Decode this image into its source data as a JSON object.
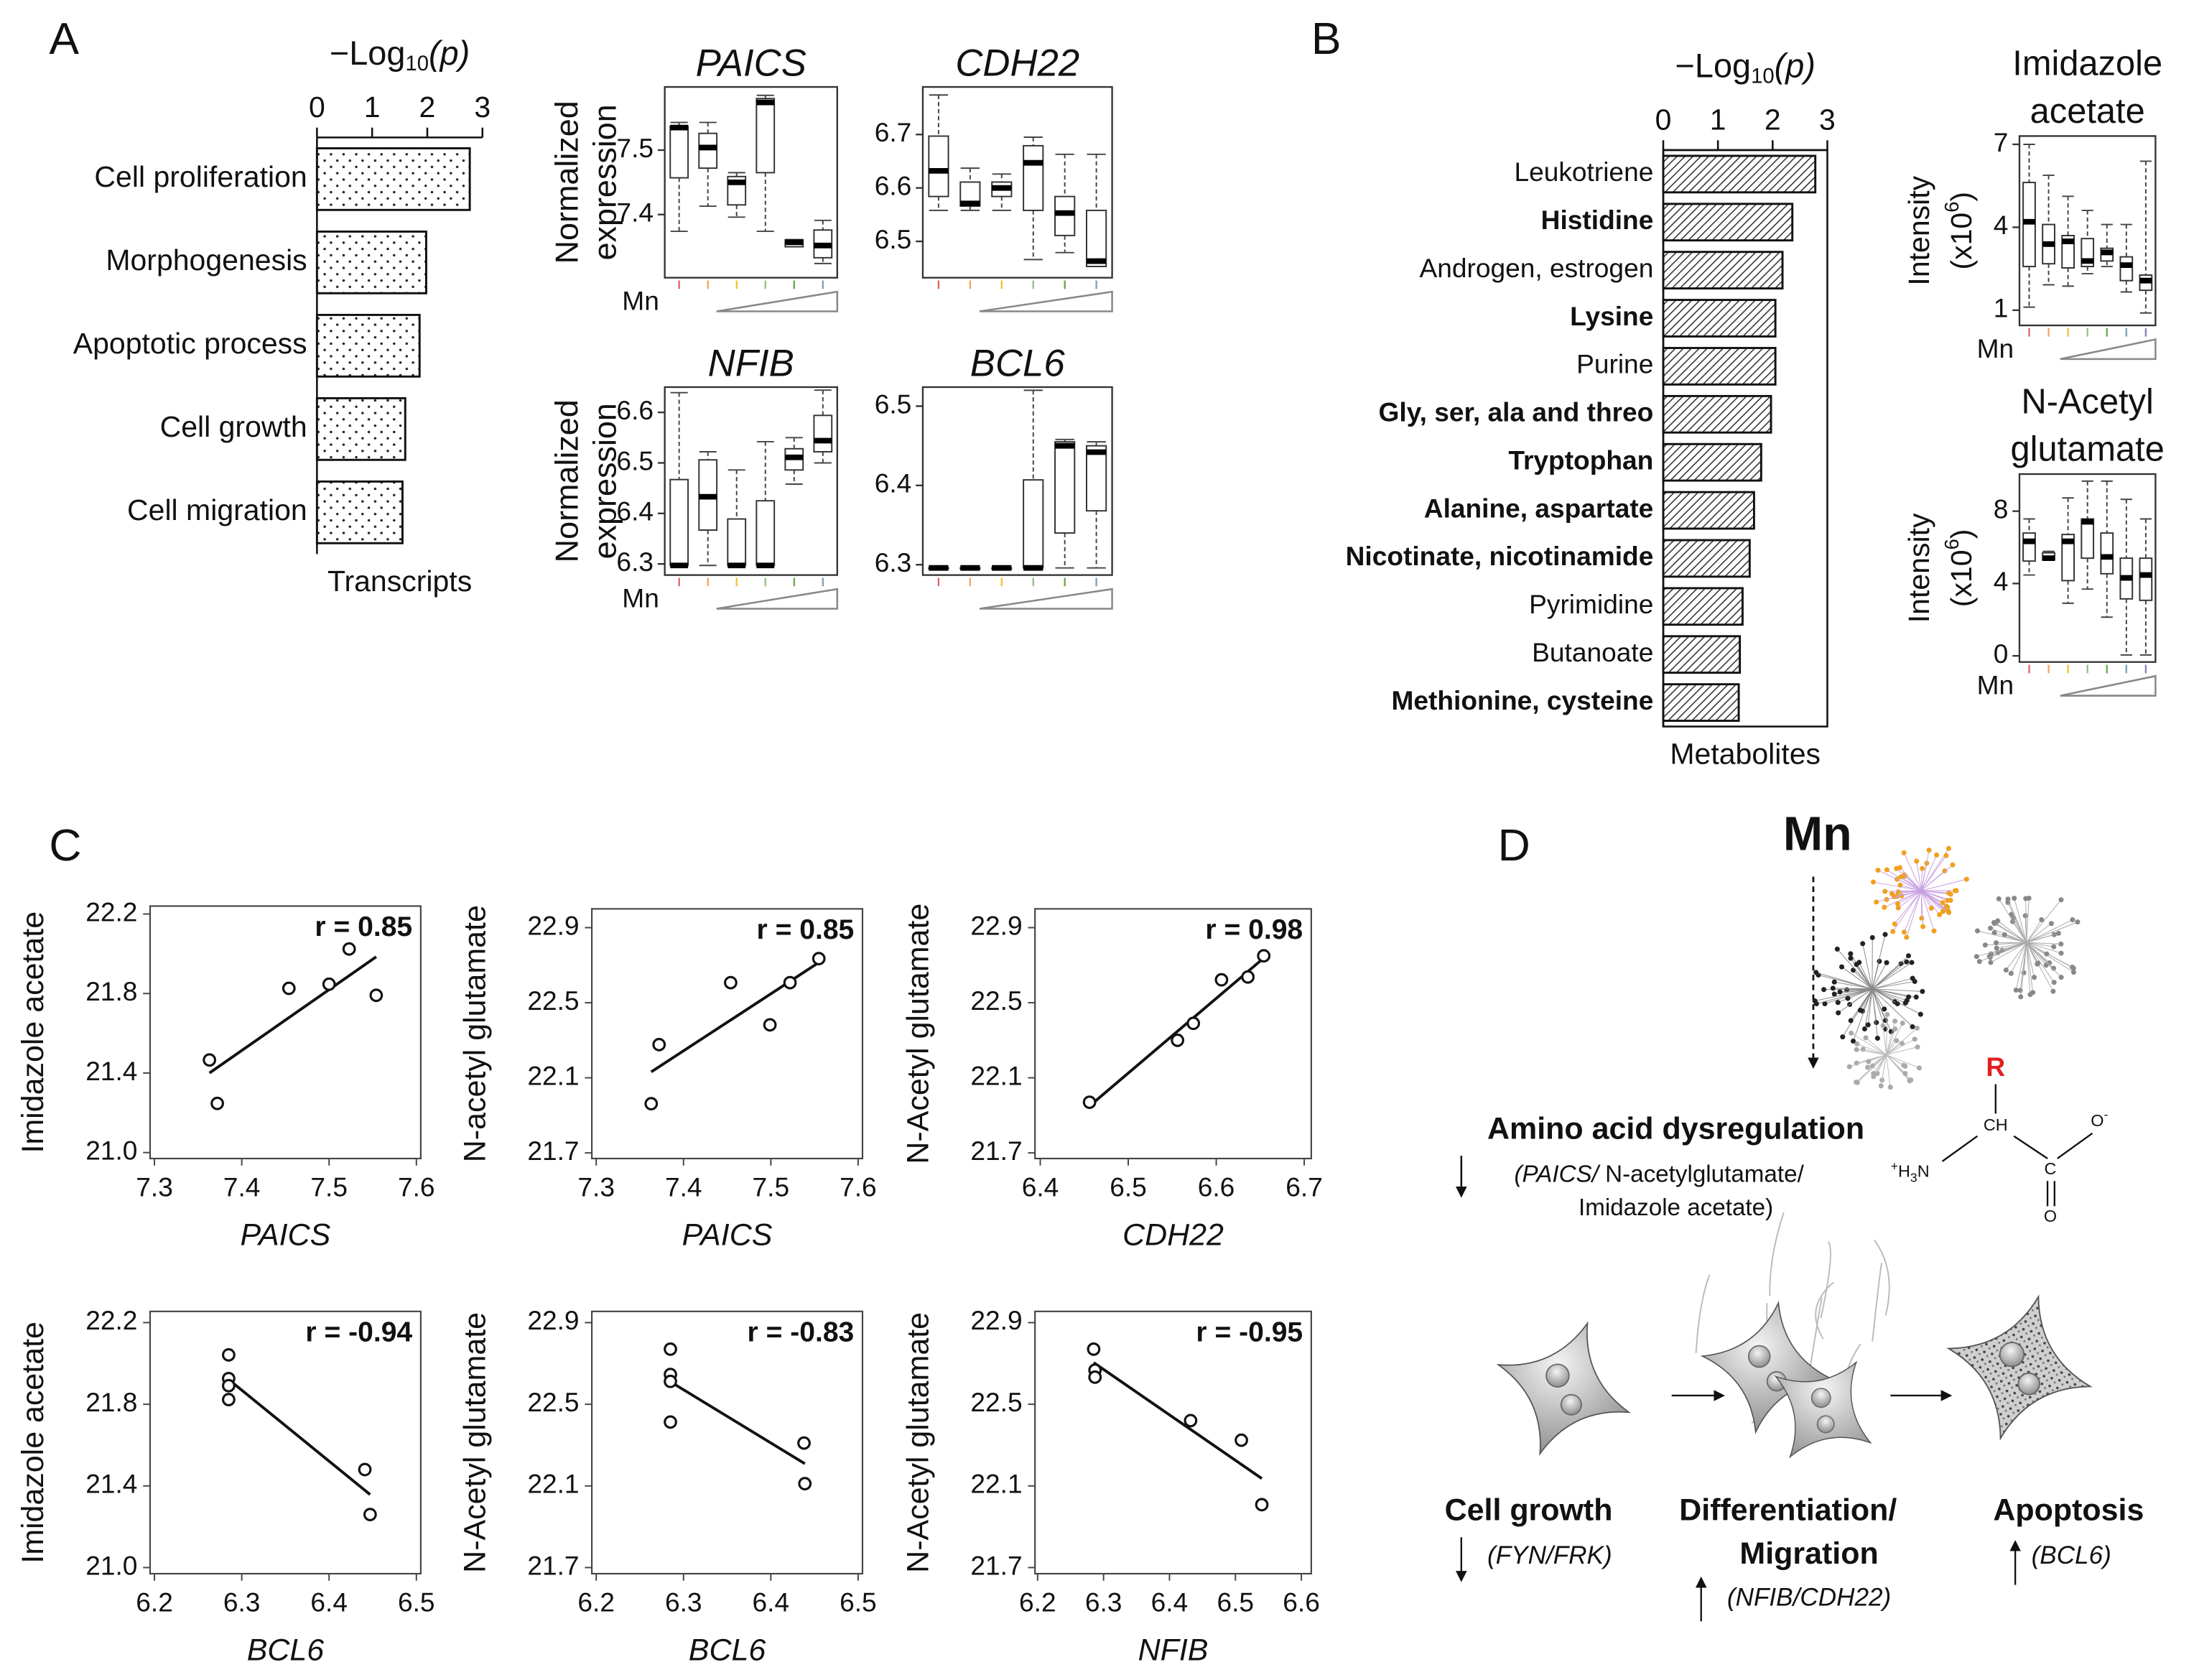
{
  "panel_labels": [
    "A",
    "B",
    "C",
    "D"
  ],
  "chart_data": [
    {
      "type": "barh",
      "title": [
        "−Log",
        "10",
        "(p)"
      ],
      "categories": [
        "Cell proliferation",
        "Morphogenesis",
        "Apoptotic process",
        "Cell growth",
        "Cell migration"
      ],
      "values": [
        2.77,
        1.98,
        1.86,
        1.6,
        1.55
      ],
      "xlim": [
        0,
        3
      ],
      "xticks": [
        0,
        1,
        2,
        3
      ],
      "xlabel": "Transcripts",
      "pattern": "dots",
      "frame": false
    },
    {
      "type": "box",
      "title": "PAICS",
      "italic_title": true,
      "ylabel": [
        "Normalized",
        "expression"
      ],
      "xlabel": "Mn",
      "ylim": [
        7.302,
        7.598
      ],
      "yticks": [
        7.4,
        7.5
      ],
      "min": [
        7.374,
        7.413,
        7.396,
        7.374,
        7.35,
        7.324
      ],
      "q1": [
        7.457,
        7.472,
        7.415,
        7.465,
        7.35,
        7.333
      ],
      "median": [
        7.535,
        7.504,
        7.45,
        7.574,
        7.357,
        7.352
      ],
      "q3": [
        7.537,
        7.526,
        7.459,
        7.58,
        7.361,
        7.376
      ],
      "max": [
        7.543,
        7.543,
        7.465,
        7.585,
        7.361,
        7.391
      ]
    },
    {
      "type": "box",
      "title": "CDH22",
      "italic_title": true,
      "ylim": [
        6.432,
        6.789
      ],
      "yticks": [
        6.5,
        6.6,
        6.7
      ],
      "min": [
        6.558,
        6.558,
        6.558,
        6.466,
        6.479,
        6.453
      ],
      "q1": [
        6.584,
        6.566,
        6.584,
        6.558,
        6.511,
        6.453
      ],
      "median": [
        6.632,
        6.571,
        6.6,
        6.647,
        6.553,
        6.463
      ],
      "q3": [
        6.697,
        6.611,
        6.611,
        6.679,
        6.584,
        6.558
      ],
      "max": [
        6.774,
        6.637,
        6.626,
        6.695,
        6.663,
        6.663
      ]
    },
    {
      "type": "box",
      "title": "NFIB",
      "italic_title": true,
      "ylabel": [
        "Normalized",
        "expression"
      ],
      "xlabel": "Mn",
      "ylim": [
        6.278,
        6.65
      ],
      "yticks": [
        6.3,
        6.4,
        6.5,
        6.6
      ],
      "min": [
        6.297,
        6.297,
        6.297,
        6.297,
        6.458,
        6.5
      ],
      "q1": [
        6.297,
        6.367,
        6.297,
        6.297,
        6.486,
        6.522
      ],
      "median": [
        6.297,
        6.433,
        6.297,
        6.297,
        6.511,
        6.544
      ],
      "q3": [
        6.467,
        6.506,
        6.389,
        6.425,
        6.528,
        6.594
      ],
      "max": [
        6.639,
        6.522,
        6.486,
        6.542,
        6.55,
        6.644
      ]
    },
    {
      "type": "box",
      "title": "BCL6",
      "italic_title": true,
      "ylim": [
        6.287,
        6.524
      ],
      "yticks": [
        6.3,
        6.4,
        6.5
      ],
      "min": [
        6.296,
        6.296,
        6.296,
        6.296,
        6.296,
        6.296
      ],
      "q1": [
        6.296,
        6.296,
        6.296,
        6.296,
        6.34,
        6.368
      ],
      "median": [
        6.296,
        6.296,
        6.296,
        6.296,
        6.45,
        6.442
      ],
      "q3": [
        6.296,
        6.296,
        6.296,
        6.407,
        6.455,
        6.45
      ],
      "max": [
        6.296,
        6.296,
        6.296,
        6.52,
        6.458,
        6.455
      ]
    },
    {
      "type": "barh",
      "title": [
        "−Log",
        "10",
        "(p)"
      ],
      "categories": [
        "Leukotriene",
        "Histidine",
        "Androgen, estrogen",
        "Lysine",
        "Purine",
        "Gly, ser, ala and threo",
        "Tryptophan",
        "Alanine, aspartate",
        "Nicotinate, nicotinamide",
        "Pyrimidine",
        "Butanoate",
        "Methionine, cysteine"
      ],
      "bold": [
        false,
        true,
        false,
        true,
        false,
        true,
        true,
        true,
        true,
        false,
        false,
        true
      ],
      "values": [
        2.78,
        2.36,
        2.18,
        2.05,
        2.05,
        1.97,
        1.79,
        1.66,
        1.58,
        1.45,
        1.4,
        1.38
      ],
      "xlim": [
        0,
        3
      ],
      "xticks": [
        0,
        1,
        2,
        3
      ],
      "xlabel": "Metabolites",
      "pattern": "hatch",
      "frame": true
    },
    {
      "type": "box",
      "title": [
        "Imidazole",
        "acetate"
      ],
      "italic_title": false,
      "ylabel": [
        "Intensity"
      ],
      "ylabel_unit": [
        "(x10",
        "6",
        ")"
      ],
      "xlabel": "Mn",
      "ylim": [
        0.45,
        7.3
      ],
      "yticks": [
        1,
        4,
        7
      ],
      "min": [
        1.11,
        1.92,
        1.87,
        2.32,
        2.58,
        1.66,
        0.9
      ],
      "q1": [
        2.58,
        2.68,
        2.53,
        2.58,
        2.78,
        2.07,
        1.72
      ],
      "median": [
        4.2,
        3.39,
        3.49,
        2.78,
        3.09,
        2.63,
        2.07
      ],
      "q3": [
        5.62,
        4.1,
        3.7,
        3.59,
        3.24,
        2.93,
        2.27
      ],
      "max": [
        7,
        5.88,
        5.12,
        4.61,
        4.1,
        4.1,
        6.39
      ]
    },
    {
      "type": "box",
      "title": [
        "N-Acetyl",
        "glutamate"
      ],
      "italic_title": false,
      "ylabel": [
        "Intensity"
      ],
      "ylabel_unit": [
        "(x10",
        "6",
        ")"
      ],
      "xlabel": "Mn",
      "ylim": [
        -0.34,
        10.05
      ],
      "yticks": [
        0,
        4,
        8
      ],
      "min": [
        4.47,
        5.3,
        2.91,
        3.69,
        2.14,
        0.05,
        0.05
      ],
      "q1": [
        5.24,
        5.3,
        4.16,
        5.4,
        4.54,
        3.15,
        3.07
      ],
      "median": [
        6.33,
        5.4,
        6.33,
        7.41,
        5.47,
        4.31,
        4.47
      ],
      "q3": [
        6.79,
        5.7,
        6.71,
        7.57,
        6.79,
        5.4,
        5.4
      ],
      "max": [
        7.57,
        5.78,
        8.73,
        9.66,
        9.66,
        8.65,
        7.57
      ]
    },
    {
      "type": "scatter",
      "xlabel": "PAICS",
      "italic_xlabel": true,
      "ylabel": "Imidazole acetate",
      "annotation": "r = 0.85",
      "x": [
        7.363,
        7.372,
        7.454,
        7.5,
        7.523,
        7.554
      ],
      "y": [
        21.466,
        21.247,
        21.826,
        21.847,
        22.024,
        21.791
      ],
      "xlim": [
        7.295,
        7.605
      ],
      "xticks": [
        7.3,
        7.4,
        7.5,
        7.6
      ],
      "ylim": [
        20.97,
        22.24
      ],
      "yticks": [
        22.2,
        21.8,
        21.4,
        {
          "value": 21,
          "label": "21.0"
        }
      ]
    },
    {
      "type": "scatter",
      "xlabel": "PAICS",
      "italic_xlabel": true,
      "ylabel": "N-acetyl glutamate",
      "annotation": "r = 0.85",
      "x": [
        7.363,
        7.372,
        7.454,
        7.499,
        7.522,
        7.555
      ],
      "y": [
        21.962,
        22.277,
        22.607,
        22.382,
        22.607,
        22.735
      ],
      "xlim": [
        7.295,
        7.605
      ],
      "xticks": [
        7.3,
        7.4,
        7.5,
        7.6
      ],
      "ylim": [
        21.67,
        23.0
      ],
      "yticks": [
        22.9,
        22.5,
        22.1,
        21.7
      ]
    },
    {
      "type": "scatter",
      "xlabel": "CDH22",
      "italic_xlabel": true,
      "ylabel": "N-Acetyl glutamate",
      "annotation": "r = 0.98",
      "x": [
        6.456,
        6.556,
        6.574,
        6.606,
        6.636,
        6.654
      ],
      "y": [
        21.97,
        22.3,
        22.39,
        22.622,
        22.637,
        22.75
      ],
      "xlim": [
        6.394,
        6.708
      ],
      "xticks": [
        6.4,
        6.5,
        6.6,
        6.7
      ],
      "ylim": [
        21.67,
        23.0
      ],
      "yticks": [
        22.9,
        22.5,
        22.1,
        21.7
      ]
    },
    {
      "type": "scatter",
      "xlabel": "BCL6",
      "italic_xlabel": true,
      "ylabel": "Imidazole acetate",
      "annotation": "r = -0.94",
      "x": [
        6.285,
        6.285,
        6.285,
        6.285,
        6.441,
        6.447
      ],
      "y": [
        22.042,
        21.926,
        21.891,
        21.823,
        21.48,
        21.26
      ],
      "xlim": [
        6.195,
        6.505
      ],
      "xticks": [
        6.2,
        6.3,
        6.4,
        6.5
      ],
      "ylim": [
        20.97,
        22.255
      ],
      "yticks": [
        22.2,
        21.8,
        21.4,
        {
          "value": 21,
          "label": "21.0"
        }
      ]
    },
    {
      "type": "scatter",
      "xlabel": "BCL6",
      "italic_xlabel": true,
      "ylabel": "N-Acetyl glutamate",
      "annotation": "r = -0.83",
      "x": [
        6.285,
        6.285,
        6.285,
        6.285,
        6.438,
        6.439
      ],
      "y": [
        22.77,
        22.646,
        22.612,
        22.413,
        22.31,
        22.111
      ],
      "xlim": [
        6.195,
        6.505
      ],
      "xticks": [
        6.2,
        6.3,
        6.4,
        6.5
      ],
      "ylim": [
        21.67,
        22.955
      ],
      "yticks": [
        22.9,
        22.5,
        22.1,
        21.7
      ]
    },
    {
      "type": "scatter",
      "xlabel": "NFIB",
      "italic_xlabel": true,
      "ylabel": "N-Acetyl glutamate",
      "annotation": "r = -0.95",
      "x": [
        6.285,
        6.287,
        6.287,
        6.432,
        6.509,
        6.54
      ],
      "y": [
        22.77,
        22.667,
        22.633,
        22.42,
        22.324,
        22.008
      ],
      "xlim": [
        6.196,
        6.615
      ],
      "xticks": [
        6.2,
        6.3,
        6.4,
        6.5,
        6.6
      ],
      "ylim": [
        21.67,
        22.955
      ],
      "yticks": [
        22.9,
        22.5,
        22.1,
        21.7
      ]
    }
  ],
  "diagram": {
    "source": "Mn",
    "effect": {
      "title": "Amino acid dysregulation",
      "detail": [
        "(PAICS/",
        " N-acetylglutamate/",
        "Imidazole acetate)"
      ]
    },
    "molecule": {
      "r": "R",
      "ch": "CH",
      "o_minus": [
        "O",
        "-"
      ],
      "amine": [
        "+",
        "H",
        "3",
        "N"
      ],
      "c": "C",
      "o": "O"
    },
    "stages": [
      {
        "title": [
          "Cell growth"
        ],
        "genes": "(FYN/FRK)"
      },
      {
        "title": [
          "Differentiation/",
          "Migration"
        ],
        "genes": "(NFIB/CDH22)"
      },
      {
        "title": [
          "Apoptosis"
        ],
        "genes": "(BCL6)"
      }
    ]
  }
}
